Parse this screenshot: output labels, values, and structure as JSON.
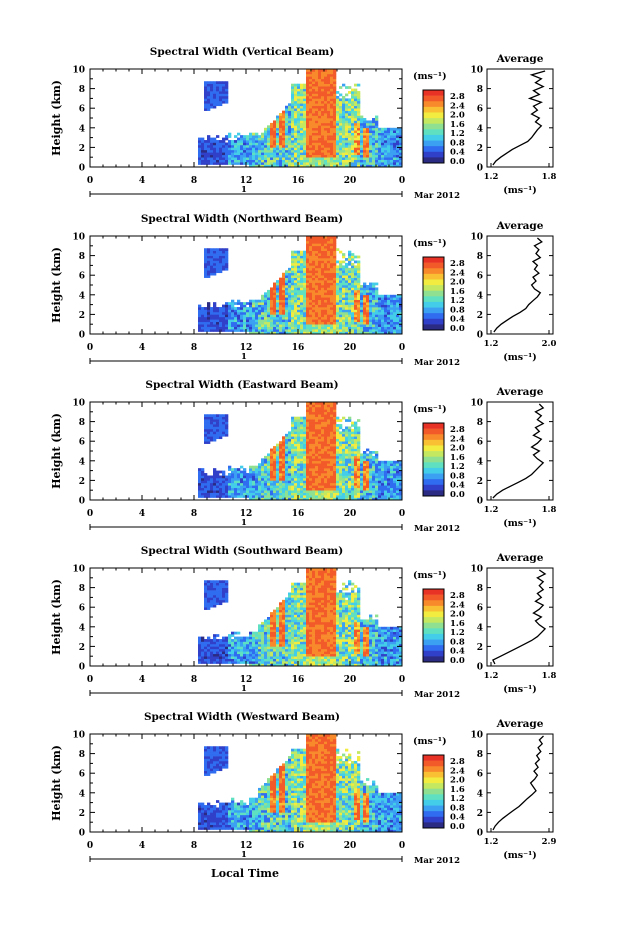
{
  "figure": {
    "xlabel": "Local Time",
    "date_label": "Mar 2012",
    "day_label": "1",
    "ylabel": "Height (km)",
    "unit_label": "(ms⁻¹)",
    "average_title": "Average",
    "average_xlabel": "(ms⁻¹)"
  },
  "colorbar": {
    "tick_labels": [
      "2.8",
      "2.4",
      "2.0",
      "1.6",
      "1.2",
      "0.8",
      "0.4",
      "0.0"
    ],
    "colors": [
      "#2b2b84",
      "#3140c8",
      "#2f6cf0",
      "#3ba0f2",
      "#43cde8",
      "#5fe0c0",
      "#8fe090",
      "#c4e860",
      "#f2ec40",
      "#f8c032",
      "#f88a2c",
      "#f25a2a",
      "#e83226"
    ]
  },
  "chart_data": [
    {
      "type": "heatmap",
      "title": "Spectral Width (Vertical Beam)",
      "x_ticks": [
        "0",
        "4",
        "8",
        "12",
        "16",
        "20",
        "0"
      ],
      "x_range_hours": [
        0,
        24
      ],
      "y_ticks": [
        "0",
        "2",
        "4",
        "6",
        "8",
        "10"
      ],
      "ylim_km": [
        0,
        10
      ],
      "clim": [
        0.0,
        2.8
      ],
      "average": {
        "x_ticks": [
          "1.2",
          "1.8"
        ],
        "xlim": [
          1.2,
          1.8
        ],
        "ylim_km": [
          0,
          10
        ],
        "height_km": [
          0.2,
          0.6,
          1.0,
          1.4,
          1.8,
          2.2,
          2.6,
          3.0,
          3.4,
          3.8,
          4.2,
          4.6,
          5.0,
          5.4,
          5.8,
          6.2,
          6.6,
          7.0,
          7.4,
          7.8,
          8.2,
          8.6,
          9.0,
          9.4,
          9.8
        ],
        "value": [
          1.22,
          1.25,
          1.3,
          1.36,
          1.42,
          1.5,
          1.58,
          1.62,
          1.65,
          1.68,
          1.72,
          1.66,
          1.7,
          1.62,
          1.68,
          1.64,
          1.72,
          1.6,
          1.7,
          1.64,
          1.74,
          1.66,
          1.72,
          1.62,
          1.76
        ]
      }
    },
    {
      "type": "heatmap",
      "title": "Spectral Width (Northward Beam)",
      "x_ticks": [
        "0",
        "4",
        "8",
        "12",
        "16",
        "20",
        "0"
      ],
      "x_range_hours": [
        0,
        24
      ],
      "y_ticks": [
        "0",
        "2",
        "4",
        "6",
        "8",
        "10"
      ],
      "ylim_km": [
        0,
        10
      ],
      "clim": [
        0.0,
        2.8
      ],
      "average": {
        "x_ticks": [
          "1.2",
          "2.0"
        ],
        "xlim": [
          1.2,
          2.0
        ],
        "ylim_km": [
          0,
          10
        ],
        "height_km": [
          0.2,
          0.6,
          1.0,
          1.4,
          1.8,
          2.2,
          2.6,
          3.0,
          3.4,
          3.8,
          4.2,
          4.6,
          5.0,
          5.4,
          5.8,
          6.2,
          6.6,
          7.0,
          7.4,
          7.8,
          8.2,
          8.6,
          9.0,
          9.4,
          9.8
        ],
        "value": [
          1.24,
          1.28,
          1.34,
          1.42,
          1.5,
          1.6,
          1.68,
          1.72,
          1.78,
          1.84,
          1.88,
          1.8,
          1.76,
          1.82,
          1.78,
          1.86,
          1.8,
          1.84,
          1.78,
          1.88,
          1.82,
          1.86,
          1.8,
          1.9,
          1.84
        ]
      }
    },
    {
      "type": "heatmap",
      "title": "Spectral Width (Eastward Beam)",
      "x_ticks": [
        "0",
        "4",
        "8",
        "12",
        "16",
        "20",
        "0"
      ],
      "x_range_hours": [
        0,
        24
      ],
      "y_ticks": [
        "0",
        "2",
        "4",
        "6",
        "8",
        "10"
      ],
      "ylim_km": [
        0,
        10
      ],
      "clim": [
        0.0,
        2.8
      ],
      "average": {
        "x_ticks": [
          "1.2",
          "1.8"
        ],
        "xlim": [
          1.2,
          1.8
        ],
        "ylim_km": [
          0,
          10
        ],
        "height_km": [
          0.2,
          0.6,
          1.0,
          1.4,
          1.8,
          2.2,
          2.6,
          3.0,
          3.4,
          3.8,
          4.2,
          4.6,
          5.0,
          5.4,
          5.8,
          6.2,
          6.6,
          7.0,
          7.4,
          7.8,
          8.2,
          8.6,
          9.0,
          9.4,
          9.8
        ],
        "value": [
          1.22,
          1.26,
          1.32,
          1.4,
          1.48,
          1.56,
          1.62,
          1.66,
          1.7,
          1.74,
          1.68,
          1.64,
          1.7,
          1.62,
          1.68,
          1.72,
          1.64,
          1.7,
          1.66,
          1.74,
          1.68,
          1.72,
          1.66,
          1.74,
          1.7
        ]
      }
    },
    {
      "type": "heatmap",
      "title": "Spectral Width (Southward Beam)",
      "x_ticks": [
        "0",
        "4",
        "8",
        "12",
        "16",
        "20",
        "0"
      ],
      "x_range_hours": [
        0,
        24
      ],
      "y_ticks": [
        "0",
        "2",
        "4",
        "6",
        "8",
        "10"
      ],
      "ylim_km": [
        0,
        10
      ],
      "clim": [
        0.0,
        2.8
      ],
      "average": {
        "x_ticks": [
          "1.2",
          "1.8"
        ],
        "xlim": [
          1.2,
          1.8
        ],
        "ylim_km": [
          0,
          10
        ],
        "height_km": [
          0.2,
          0.6,
          1.0,
          1.4,
          1.8,
          2.2,
          2.6,
          3.0,
          3.4,
          3.8,
          4.2,
          4.6,
          5.0,
          5.4,
          5.8,
          6.2,
          6.6,
          7.0,
          7.4,
          7.8,
          8.2,
          8.6,
          9.0,
          9.4,
          9.8
        ],
        "value": [
          1.24,
          1.22,
          1.3,
          1.38,
          1.46,
          1.54,
          1.62,
          1.68,
          1.72,
          1.76,
          1.7,
          1.66,
          1.72,
          1.64,
          1.7,
          1.74,
          1.66,
          1.72,
          1.68,
          1.74,
          1.7,
          1.74,
          1.68,
          1.76,
          1.7
        ]
      }
    },
    {
      "type": "heatmap",
      "title": "Spectral Width (Westward Beam)",
      "x_ticks": [
        "0",
        "4",
        "8",
        "12",
        "16",
        "20",
        "0"
      ],
      "x_range_hours": [
        0,
        24
      ],
      "y_ticks": [
        "0",
        "2",
        "4",
        "6",
        "8",
        "10"
      ],
      "ylim_km": [
        0,
        10
      ],
      "clim": [
        0.0,
        2.8
      ],
      "average": {
        "x_ticks": [
          "1.2",
          "2.9"
        ],
        "xlim": [
          1.2,
          2.9
        ],
        "ylim_km": [
          0,
          10
        ],
        "height_km": [
          0.2,
          0.6,
          1.0,
          1.4,
          1.8,
          2.2,
          2.6,
          3.0,
          3.4,
          3.8,
          4.2,
          4.6,
          5.0,
          5.4,
          5.8,
          6.2,
          6.6,
          7.0,
          7.4,
          7.8,
          8.2,
          8.6,
          9.0,
          9.4,
          9.8
        ],
        "value": [
          1.26,
          1.32,
          1.42,
          1.55,
          1.7,
          1.86,
          2.02,
          2.14,
          2.26,
          2.4,
          2.52,
          2.44,
          2.36,
          2.48,
          2.56,
          2.46,
          2.58,
          2.5,
          2.62,
          2.54,
          2.66,
          2.58,
          2.7,
          2.62,
          2.74
        ]
      }
    }
  ]
}
